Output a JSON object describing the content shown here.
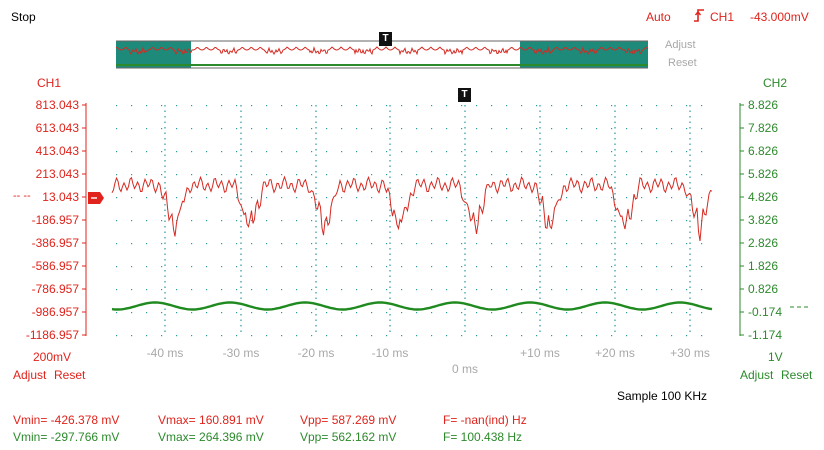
{
  "status": {
    "state": "Stop"
  },
  "trigger": {
    "mode": "Auto",
    "icon": "trigger-edge-icon",
    "channel": "CH1",
    "level": "-43.000mV"
  },
  "overview": {
    "adjust_label": "Adjust",
    "reset_label": "Reset",
    "trigger_marker": "T"
  },
  "ch1": {
    "label": "CH1",
    "scale": "200mV",
    "adjust_label": "Adjust",
    "reset_label": "Reset",
    "color": "#e0231c",
    "ticks": [
      "813.043",
      "613.043",
      "413.043",
      "213.043",
      "13.043",
      "-186.957",
      "-386.957",
      "-586.957",
      "-786.957",
      "-986.957",
      "-1186.957"
    ],
    "zero_marker": "-- --"
  },
  "ch2": {
    "label": "CH2",
    "scale": "1V",
    "adjust_label": "Adjust",
    "reset_label": "Reset",
    "color": "#2c8a2c",
    "ticks": [
      "8.826",
      "7.826",
      "6.826",
      "5.826",
      "4.826",
      "3.826",
      "2.826",
      "1.826",
      "0.826",
      "-0.174",
      "-1.174"
    ],
    "zero_marker": "-- --"
  },
  "xaxis": {
    "ticks": [
      "-40 ms",
      "-30 ms",
      "-20 ms",
      "-10 ms",
      "0 ms",
      "+10 ms",
      "+20 ms",
      "+30 ms"
    ],
    "trigger_marker": "T"
  },
  "sample": "Sample 100 KHz",
  "measurements": {
    "ch1": {
      "vmin": "Vmin= -426.378 mV",
      "vmax": "Vmax= 160.891 mV",
      "vpp": "Vpp= 587.269 mV",
      "freq": "F= -nan(ind) Hz"
    },
    "ch2": {
      "vmin": "Vmin= -297.766 mV",
      "vmax": "Vmax= 264.396 mV",
      "vpp": "Vpp= 562.162 mV",
      "freq": "F= 100.438 Hz"
    }
  }
}
